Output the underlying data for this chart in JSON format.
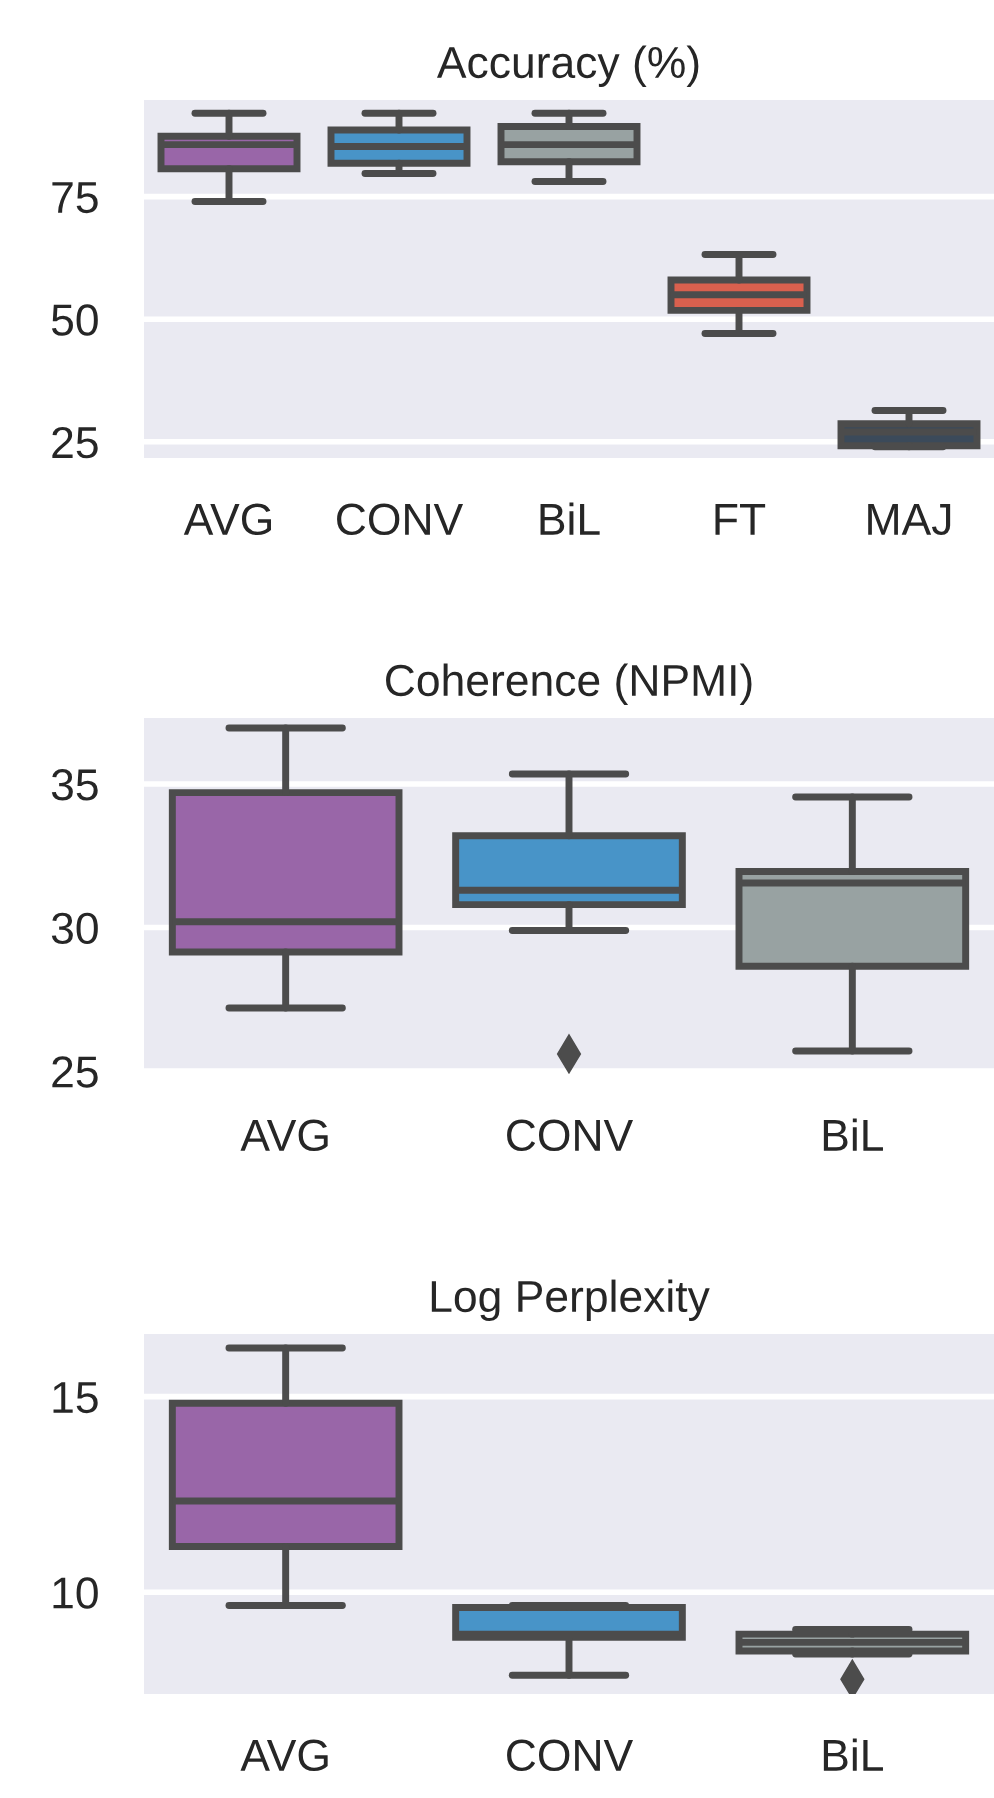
{
  "chart_data": [
    {
      "type": "box",
      "title": "Accuracy (%)",
      "categories": [
        "AVG",
        "CONV",
        "BiL",
        "FT",
        "MAJ"
      ],
      "colors": [
        "#9966a8",
        "#4894c8",
        "#98a2a2",
        "#d9604e",
        "#3b4a5a"
      ],
      "ylim": [
        21.7,
        94.7
      ],
      "yticks": [
        25,
        50,
        75
      ],
      "grid": "y",
      "boxes": [
        {
          "low": 74.0,
          "q1": 80.7,
          "median": 85.6,
          "q3": 87.3,
          "high": 92.0
        },
        {
          "low": 79.7,
          "q1": 81.8,
          "median": 85.2,
          "q3": 88.6,
          "high": 92.0
        },
        {
          "low": 78.1,
          "q1": 82.1,
          "median": 85.6,
          "q3": 89.3,
          "high": 92.0
        },
        {
          "low": 47.1,
          "q1": 51.8,
          "median": 55.0,
          "q3": 58.0,
          "high": 63.2
        },
        {
          "low": 24.0,
          "q1": 24.2,
          "median": 27.0,
          "q3": 28.7,
          "high": 31.4
        }
      ]
    },
    {
      "type": "box",
      "title": "Coherence (NPMI)",
      "categories": [
        "AVG",
        "CONV",
        "BiL"
      ],
      "colors": [
        "#9966a8",
        "#4894c8",
        "#98a2a2"
      ],
      "ylim": [
        24.9,
        37.3
      ],
      "yticks": [
        25,
        30,
        35
      ],
      "grid": "y",
      "boxes": [
        {
          "low": 27.2,
          "q1": 29.15,
          "median": 30.2,
          "q3": 34.7,
          "high": 36.95
        },
        {
          "low": 29.9,
          "q1": 30.8,
          "median": 31.3,
          "q3": 33.2,
          "high": 35.35,
          "outliers": [
            25.6
          ]
        },
        {
          "low": 25.7,
          "q1": 28.65,
          "median": 31.55,
          "q3": 31.95,
          "high": 34.55
        }
      ]
    },
    {
      "type": "box",
      "title": "Log Perplexity",
      "categories": [
        "AVG",
        "CONV",
        "BiL"
      ],
      "colors": [
        "#9966a8",
        "#4894c8",
        "#98a2a2"
      ],
      "ylim": [
        7.4,
        16.6
      ],
      "yticks": [
        10,
        15
      ],
      "grid": "y",
      "boxes": [
        {
          "low": 9.66,
          "q1": 11.17,
          "median": 12.33,
          "q3": 14.83,
          "high": 16.24
        },
        {
          "low": 7.88,
          "q1": 8.85,
          "median": 8.93,
          "q3": 9.61,
          "high": 9.66
        },
        {
          "low": 8.42,
          "q1": 8.5,
          "median": 8.72,
          "q3": 8.93,
          "high": 9.05,
          "outliers": [
            7.78
          ]
        }
      ]
    }
  ]
}
